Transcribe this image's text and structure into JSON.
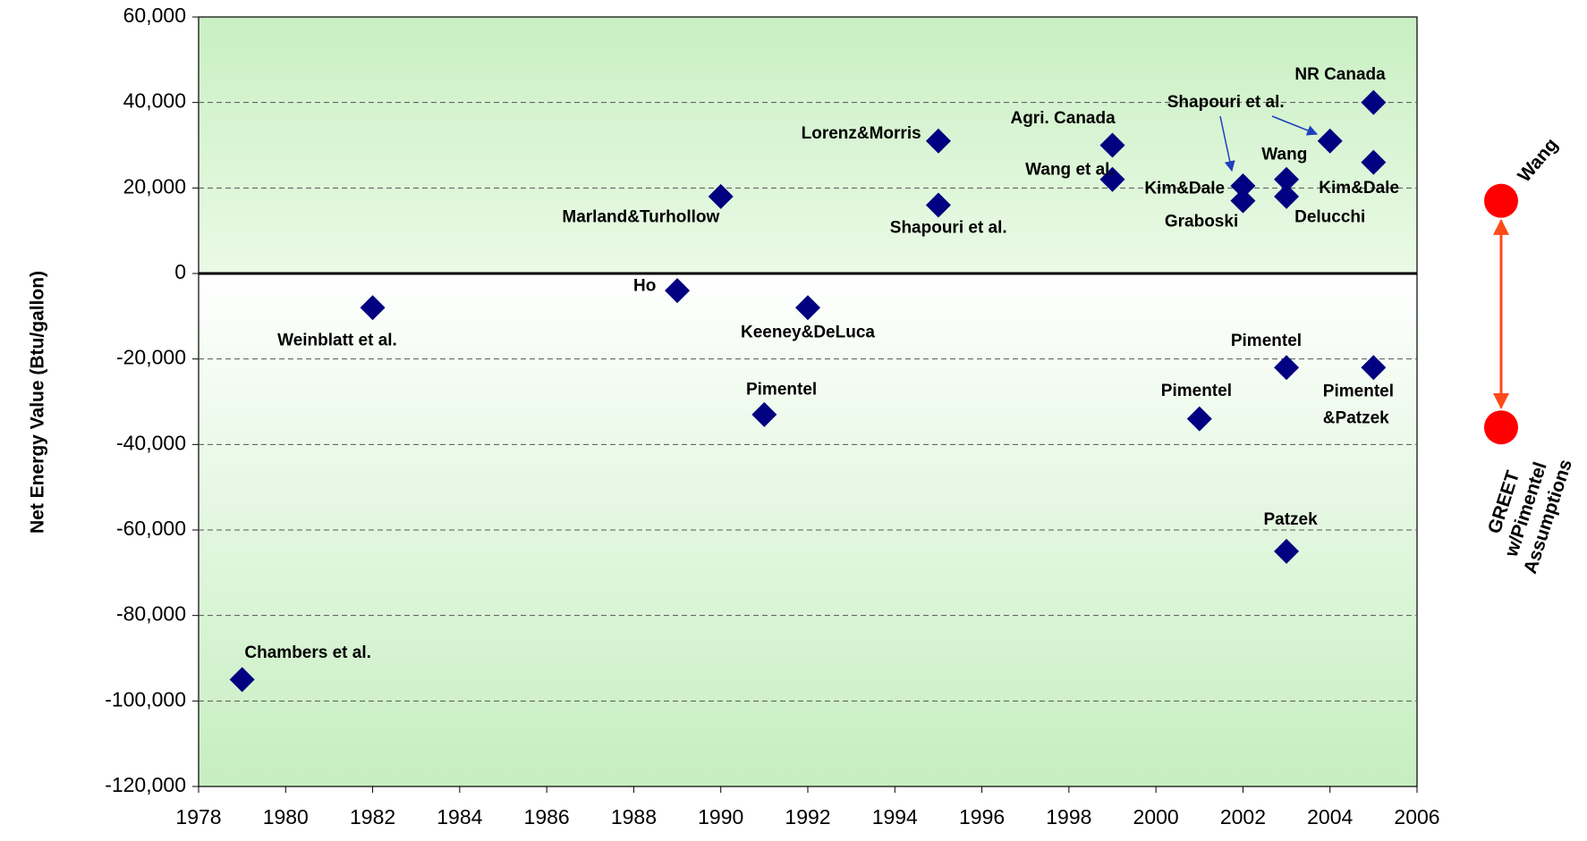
{
  "chart_data": {
    "type": "scatter",
    "y_axis_label": "Net Energy Value (Btu/gallon)",
    "xlim": [
      1978,
      2006
    ],
    "xticks": [
      1978,
      1980,
      1982,
      1984,
      1986,
      1988,
      1990,
      1992,
      1994,
      1996,
      1998,
      2000,
      2002,
      2004,
      2006
    ],
    "ylim": [
      -120000,
      60000
    ],
    "yticks": [
      {
        "value": -120000,
        "label": "-120,000"
      },
      {
        "value": -100000,
        "label": "-100,000"
      },
      {
        "value": -80000,
        "label": "-80,000"
      },
      {
        "value": -60000,
        "label": "-60,000"
      },
      {
        "value": -40000,
        "label": "-40,000"
      },
      {
        "value": -20000,
        "label": "-20,000"
      },
      0,
      {
        "value": 20000,
        "label": "20,000"
      },
      {
        "value": 40000,
        "label": "40,000"
      },
      {
        "value": 60000,
        "label": "60,000"
      }
    ],
    "grid": true,
    "color": "#000080",
    "labels": [
      "Chambers et al.",
      "Weinblatt et al.",
      "Ho",
      "Marland&Turhollow",
      "Pimentel",
      "Keeney&DeLuca",
      "Lorenz&Morris",
      "Shapouri et al.",
      "Agri. Canada",
      "Wang et al.",
      "Pimentel",
      "Kim&Dale",
      "Graboski",
      "Wang",
      "Delucchi",
      "Pimentel",
      "Patzek",
      "Shapouri et al.",
      "NR Canada",
      "Kim&Dale",
      "Pimentel\n&Patzek"
    ],
    "x": [
      1979,
      1982,
      1989,
      1990,
      1991,
      1992,
      1995,
      1995,
      1999,
      1999,
      2001,
      2002,
      2002,
      2003,
      2003,
      2003,
      2003,
      2004,
      2005,
      2005,
      2005
    ],
    "values": [
      -95000,
      -8000,
      -4000,
      18000,
      -33000,
      -8000,
      31000,
      16000,
      30000,
      22000,
      -34000,
      20500,
      17000,
      22000,
      18000,
      -22000,
      -65000,
      31000,
      40000,
      26000,
      -22000
    ],
    "comparison": {
      "labels": [
        "Wang",
        "GREET\nw/Pimentel\nAssumptions"
      ],
      "values": [
        17000,
        -36000
      ],
      "color": "#ff0000"
    }
  }
}
